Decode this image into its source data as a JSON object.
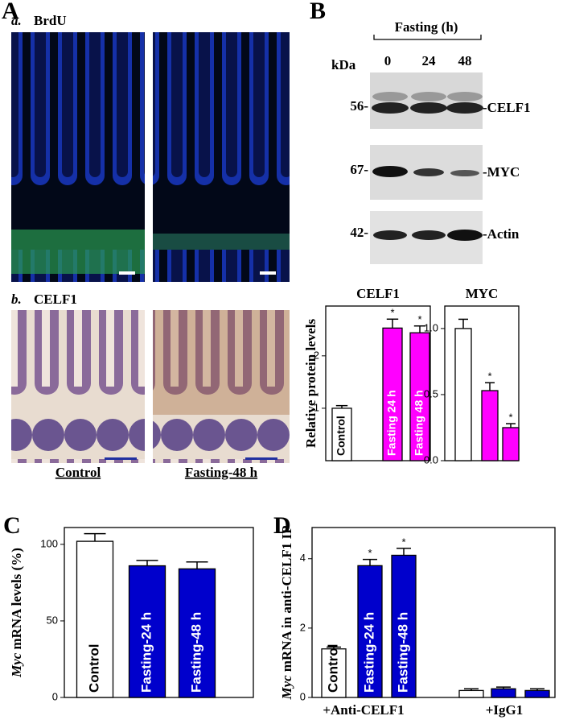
{
  "panels": [
    "A",
    "B",
    "C",
    "D"
  ],
  "panel_a": {
    "sub_a": "a.",
    "title_a": "BrdU",
    "sub_b": "b.",
    "title_b": "CELF1",
    "captions": [
      "Control",
      "Fasting-48 h"
    ]
  },
  "panel_b": {
    "title": "Fasting (h)",
    "kda": "kDa",
    "lanes": [
      "0",
      "24",
      "48"
    ],
    "markers": [
      "56-",
      "67-",
      "42-"
    ],
    "proteins": [
      "-CELF1",
      "-MYC",
      "-Actin"
    ]
  },
  "chart_data": [
    {
      "type": "bar",
      "title": "CELF1",
      "ylabel": "Relative protein levels",
      "categories": [
        "Control",
        "Fasting 24 h",
        "Fasting 48 h"
      ],
      "values": [
        1.0,
        2.53,
        2.44
      ],
      "errors": [
        0.05,
        0.17,
        0.13
      ],
      "colors": [
        "#ffffff",
        "#ff00ff",
        "#ff00ff"
      ],
      "significance": [
        null,
        "*",
        "*"
      ],
      "ylim": [
        0,
        2.95
      ],
      "yticks": [
        1,
        2
      ]
    },
    {
      "type": "bar",
      "title": "MYC",
      "categories": [
        null,
        null,
        null
      ],
      "values": [
        1.0,
        0.53,
        0.25
      ],
      "errors": [
        0.07,
        0.06,
        0.03
      ],
      "colors": [
        "#ffffff",
        "#ff00ff",
        "#ff00ff"
      ],
      "significance": [
        null,
        "*",
        "*"
      ],
      "ylim": [
        0,
        1.17
      ],
      "yticks": [
        {
          "value": 0,
          "label": "0.0"
        },
        {
          "value": 0.5,
          "label": "0.5"
        },
        {
          "value": 1,
          "label": "1.0"
        }
      ]
    },
    {
      "type": "bar",
      "ylabel": [
        "Myc",
        "mRNA levels (%)"
      ],
      "categories": [
        "Control",
        "Fasting-24 h",
        "Fasting-48 h"
      ],
      "values": [
        102,
        86,
        84
      ],
      "errors": [
        5,
        3.5,
        4.5
      ],
      "colors": [
        "#ffffff",
        "#0000cc",
        "#0000cc"
      ],
      "ylim": [
        0,
        111
      ],
      "yticks": [
        0,
        50,
        100
      ]
    },
    {
      "type": "grouped-bar",
      "ylabel": [
        "Myc",
        "mRNA in anti-CELF1 IP"
      ],
      "categories": [
        "+Anti-CELF1",
        "+IgG1"
      ],
      "series": [
        {
          "name": "Control",
          "color": "#ffffff",
          "values": [
            1.4,
            0.2
          ],
          "errors": [
            0.05,
            0.05
          ],
          "significance": [
            null,
            null
          ]
        },
        {
          "name": "Fasting-24 h",
          "color": "#0000cc",
          "values": [
            3.8,
            0.25
          ],
          "errors": [
            0.18,
            0.05
          ],
          "significance": [
            "*",
            null
          ]
        },
        {
          "name": "Fasting-48 h",
          "color": "#0000cc",
          "values": [
            4.1,
            0.2
          ],
          "errors": [
            0.2,
            0.05
          ],
          "significance": [
            "*",
            null
          ]
        }
      ],
      "ylim": [
        0,
        4.9
      ],
      "yticks": [
        0,
        2,
        4
      ]
    }
  ]
}
